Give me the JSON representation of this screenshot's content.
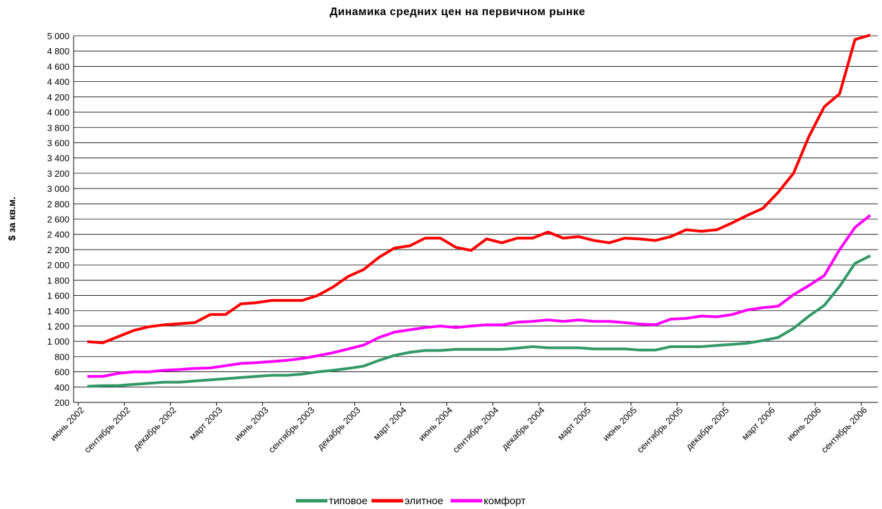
{
  "chart_data": {
    "type": "line",
    "title": "Динамика средних цен на первичном рынке",
    "y_label": "$ за кв.м.",
    "categories": [
      "июнь 2002",
      null,
      null,
      "сентябрь 2002",
      null,
      null,
      "декабрь 2002",
      null,
      null,
      "март 2003",
      null,
      null,
      "июнь 2003",
      null,
      null,
      "сентябрь 2003",
      null,
      null,
      "декабрь 2003",
      null,
      null,
      "март 2004",
      null,
      null,
      "июнь 2004",
      null,
      null,
      "сентябрь 2004",
      null,
      null,
      "декабрь 2004",
      null,
      null,
      "март 2005",
      null,
      null,
      "июнь 2005",
      null,
      null,
      "сентябрь 2005",
      null,
      null,
      "декабрь 2005",
      null,
      null,
      "март 2006",
      null,
      null,
      "июнь 2006",
      null,
      null,
      "сентябрь 2006"
    ],
    "series": [
      {
        "name": "типовое",
        "color": "#339966",
        "values": [
          410,
          420,
          420,
          435,
          450,
          465,
          465,
          480,
          495,
          510,
          525,
          540,
          555,
          555,
          570,
          600,
          620,
          645,
          675,
          750,
          815,
          855,
          880,
          880,
          895,
          895,
          895,
          895,
          910,
          930,
          915,
          915,
          915,
          900,
          900,
          900,
          885,
          885,
          930,
          930,
          930,
          945,
          960,
          975,
          1010,
          1050,
          1170,
          1330,
          1470,
          1720,
          2020,
          2120
        ]
      },
      {
        "name": "элитное",
        "color": "#ff0000",
        "values": [
          995,
          980,
          1060,
          1140,
          1190,
          1215,
          1230,
          1245,
          1350,
          1350,
          1490,
          1505,
          1535,
          1535,
          1535,
          1600,
          1710,
          1850,
          1940,
          2100,
          2220,
          2250,
          2350,
          2350,
          2230,
          2190,
          2340,
          2290,
          2350,
          2350,
          2430,
          2350,
          2370,
          2320,
          2290,
          2350,
          2340,
          2320,
          2370,
          2460,
          2440,
          2460,
          2550,
          2650,
          2740,
          2950,
          3200,
          3680,
          4070,
          4240,
          4950,
          5010
        ]
      },
      {
        "name": "комфорт",
        "color": "#ff00ff",
        "values": [
          540,
          540,
          580,
          600,
          600,
          620,
          630,
          645,
          650,
          680,
          710,
          720,
          735,
          750,
          775,
          810,
          850,
          900,
          950,
          1050,
          1120,
          1150,
          1180,
          1200,
          1180,
          1200,
          1215,
          1215,
          1250,
          1260,
          1280,
          1260,
          1280,
          1260,
          1260,
          1245,
          1225,
          1215,
          1290,
          1300,
          1330,
          1320,
          1350,
          1410,
          1440,
          1460,
          1610,
          1730,
          1860,
          2200,
          2490,
          2650
        ]
      }
    ],
    "ylim": [
      200,
      5000
    ],
    "yticks": [
      200,
      400,
      600,
      800,
      {
        "value": 1000,
        "label": "1 000"
      },
      {
        "value": 1200,
        "label": "1 200"
      },
      {
        "value": 1400,
        "label": "1 400"
      },
      {
        "value": 1600,
        "label": "1 600"
      },
      {
        "value": 1800,
        "label": "1 800"
      },
      {
        "value": 2000,
        "label": "2 000"
      },
      {
        "value": 2200,
        "label": "2 200"
      },
      {
        "value": 2400,
        "label": "2 400"
      },
      {
        "value": 2600,
        "label": "2 600"
      },
      {
        "value": 2800,
        "label": "2 800"
      },
      {
        "value": 3000,
        "label": "3 000"
      },
      {
        "value": 3200,
        "label": "3 200"
      },
      {
        "value": 3400,
        "label": "3 400"
      },
      {
        "value": 3600,
        "label": "3 600"
      },
      {
        "value": 3800,
        "label": "3 800"
      },
      {
        "value": 4000,
        "label": "4 000"
      },
      {
        "value": 4200,
        "label": "4 200"
      },
      {
        "value": 4400,
        "label": "4 400"
      },
      {
        "value": 4600,
        "label": "4 600"
      },
      {
        "value": 4800,
        "label": "4 800"
      },
      {
        "value": 5000,
        "label": "5 000"
      }
    ],
    "grid": true,
    "legend": "bottom"
  }
}
